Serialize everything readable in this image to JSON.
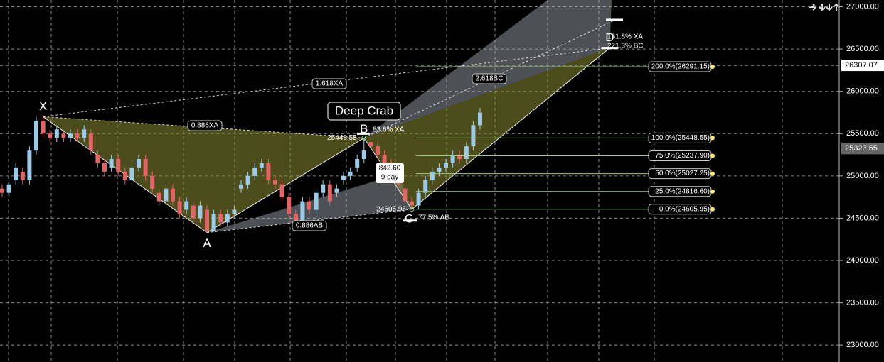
{
  "chart_data": {
    "type": "candlestick",
    "open": [
      24850,
      24800,
      24950,
      25050,
      24950,
      25300,
      25650,
      25500,
      25450,
      25500,
      25450,
      25500,
      25450,
      25500,
      25250,
      25150,
      25100,
      25200,
      25050,
      24950,
      25100,
      25200,
      25000,
      24800,
      24700,
      24850,
      24700,
      24600,
      24650,
      24500,
      24600,
      24350,
      24550,
      24450,
      24550,
      24850,
      24900,
      25000,
      25100,
      25150,
      24950,
      24900,
      24750,
      24550,
      24450,
      24700,
      24600,
      24800,
      24900,
      24800,
      24950,
      25000,
      25100,
      25200,
      25400,
      25350,
      25250,
      25150,
      25000,
      24850,
      24700,
      24650,
      24800,
      24950,
      25050,
      25100,
      25150,
      25250,
      25200,
      25350,
      25600
    ],
    "high": [
      24900,
      24950,
      25150,
      25100,
      25350,
      25700,
      25700,
      25550,
      25600,
      25550,
      25550,
      25550,
      25600,
      25550,
      25300,
      25200,
      25250,
      25250,
      25100,
      25150,
      25250,
      25250,
      25050,
      24850,
      24900,
      24900,
      24750,
      24750,
      24700,
      24700,
      24650,
      24600,
      24600,
      24600,
      24650,
      24950,
      25050,
      25150,
      25200,
      25200,
      25000,
      24950,
      24800,
      24600,
      24750,
      24750,
      24850,
      24950,
      24950,
      24900,
      25050,
      25100,
      25250,
      25448.55,
      25450,
      25400,
      25300,
      25200,
      25050,
      24900,
      24750,
      24850,
      25000,
      25100,
      25150,
      25200,
      25300,
      25300,
      25400,
      25650,
      25800
    ],
    "low": [
      24750,
      24750,
      24900,
      24900,
      24900,
      25250,
      25450,
      25400,
      25400,
      25400,
      25400,
      25400,
      25400,
      25250,
      25100,
      25000,
      25050,
      25000,
      24900,
      24900,
      25050,
      24950,
      24800,
      24650,
      24650,
      24650,
      24500,
      24550,
      24450,
      24450,
      24330,
      24340,
      24400,
      24400,
      24500,
      24800,
      24850,
      24950,
      25050,
      24900,
      24850,
      24700,
      24500,
      24400,
      24400,
      24550,
      24550,
      24750,
      24650,
      24750,
      24900,
      24950,
      25050,
      25150,
      25300,
      25200,
      25100,
      25000,
      24850,
      24650,
      24605.95,
      24610,
      24750,
      24900,
      25000,
      25050,
      25100,
      25150,
      25150,
      25300,
      25550
    ],
    "close": [
      24800,
      24900,
      25100,
      24950,
      25300,
      25650,
      25500,
      25450,
      25550,
      25450,
      25500,
      25450,
      25550,
      25300,
      25150,
      25050,
      25200,
      25050,
      24950,
      25100,
      25200,
      25000,
      24850,
      24700,
      24850,
      24700,
      24550,
      24700,
      24500,
      24650,
      24350,
      24550,
      24450,
      24550,
      24600,
      24900,
      25000,
      25100,
      25150,
      24950,
      24900,
      24750,
      24550,
      24450,
      24700,
      24600,
      24800,
      24900,
      24700,
      24850,
      25000,
      25050,
      25200,
      25300,
      25350,
      25250,
      25150,
      25050,
      24900,
      24700,
      24650,
      24800,
      24950,
      25050,
      25100,
      25150,
      25250,
      25200,
      25350,
      25600,
      25750
    ],
    "up_color": "#9ccbe8",
    "down_color": "#e36464",
    "ylim": [
      22800,
      27080
    ],
    "yticks": [
      {
        "value": 27000,
        "label": "27000.00"
      },
      {
        "value": 26500,
        "label": "26500.00"
      },
      {
        "value": 26000,
        "label": "26000.00"
      },
      {
        "value": 25500,
        "label": "25500.00"
      },
      {
        "value": 25000,
        "label": "25000.00"
      },
      {
        "value": 24500,
        "label": "24500.00"
      },
      {
        "value": 24000,
        "label": "24000.00"
      },
      {
        "value": 23500,
        "label": "23500.00"
      },
      {
        "value": 23000,
        "label": "23000.00"
      }
    ],
    "grid": true,
    "pattern_name": "Deep Crab",
    "points": [
      {
        "label": "X",
        "index": 6,
        "price": 25700
      },
      {
        "label": "A",
        "index": 30,
        "price": 24330
      },
      {
        "label": "B",
        "index": 53,
        "price": 25448.55
      },
      {
        "label": "C",
        "index": 60,
        "price": 24605.95
      },
      {
        "label": "D",
        "index": 89,
        "price": 26513
      }
    ],
    "annotations": [
      "0.886XA",
      "1.618XA",
      "0.886AB",
      "2.618BC",
      "83.6% XA",
      "77.5% AB",
      "161.8% XA",
      "221.3% BC"
    ],
    "price_notes": [
      {
        "value": 25448.55,
        "label": "25448.55"
      },
      {
        "value": 24605.95,
        "label": "24605.95"
      }
    ],
    "move_box": [
      "842.60",
      "9 day"
    ],
    "fib_levels": [
      {
        "value": 26291.15,
        "label": "200.0%(26291.15)"
      },
      {
        "value": 25448.55,
        "label": "100.0%(25448.55)"
      },
      {
        "value": 25237.9,
        "label": "75.0%(25237.90)"
      },
      {
        "value": 25027.25,
        "label": "50.0%(25027.25)"
      },
      {
        "value": 24816.6,
        "label": "25.0%(24816.60)"
      },
      {
        "value": 24605.95,
        "label": "0.0%(24605.95)"
      }
    ],
    "price_markers": [
      {
        "value": 26307.07,
        "label": "26307.07"
      },
      {
        "value": 25323.55,
        "label": "25323.55"
      }
    ]
  }
}
